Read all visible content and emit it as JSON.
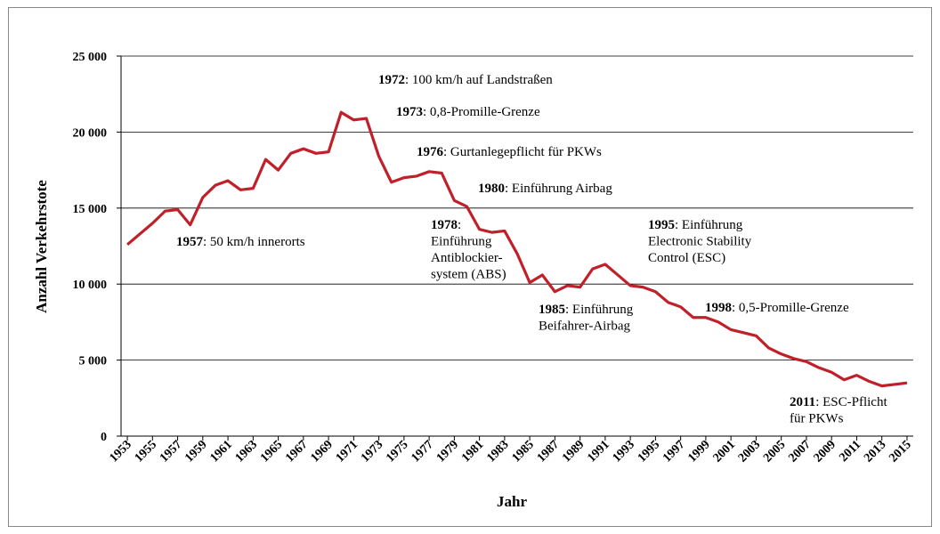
{
  "chart_data": {
    "type": "line",
    "x_label": "Jahr",
    "y_label": "Anzahl Verkehrstote",
    "x": [
      1953,
      1954,
      1955,
      1956,
      1957,
      1958,
      1959,
      1960,
      1961,
      1962,
      1963,
      1964,
      1965,
      1966,
      1967,
      1968,
      1969,
      1970,
      1971,
      1972,
      1973,
      1974,
      1975,
      1976,
      1977,
      1978,
      1979,
      1980,
      1981,
      1982,
      1983,
      1984,
      1985,
      1986,
      1987,
      1988,
      1989,
      1990,
      1991,
      1992,
      1993,
      1994,
      1995,
      1996,
      1997,
      1998,
      1999,
      2000,
      2001,
      2002,
      2003,
      2004,
      2005,
      2006,
      2007,
      2008,
      2009,
      2010,
      2011,
      2012,
      2013,
      2014,
      2015
    ],
    "series": [
      {
        "color": "#c0202a",
        "values": [
          12600,
          13300,
          14000,
          14800,
          14900,
          13900,
          15700,
          16500,
          16800,
          16200,
          16300,
          18200,
          17500,
          18600,
          18900,
          18600,
          18700,
          21300,
          20800,
          20900,
          18400,
          16700,
          17000,
          17100,
          17400,
          17300,
          15500,
          15100,
          13600,
          13400,
          13500,
          12000,
          10100,
          10600,
          9500,
          9900,
          9800,
          11000,
          11300,
          10600,
          9900,
          9800,
          9500,
          8800,
          8500,
          7800,
          7800,
          7500,
          7000,
          6800,
          6600,
          5800,
          5400,
          5100,
          4900,
          4500,
          4200,
          3700,
          4000,
          3600,
          3300,
          3400,
          3500
        ]
      }
    ],
    "xlim": [
      1952.5,
      2015.5
    ],
    "xticks": [
      1953,
      1955,
      1957,
      1959,
      1961,
      1963,
      1965,
      1967,
      1969,
      1971,
      1973,
      1975,
      1977,
      1979,
      1981,
      1983,
      1985,
      1987,
      1989,
      1991,
      1993,
      1995,
      1997,
      1999,
      2001,
      2003,
      2005,
      2007,
      2009,
      2011,
      2013,
      2015
    ],
    "ylim": [
      0,
      25000
    ],
    "yticks": [
      0,
      {
        "value": 5000,
        "label": "5 000"
      },
      {
        "value": 10000,
        "label": "10 000"
      },
      {
        "value": 15000,
        "label": "15 000"
      },
      {
        "value": 20000,
        "label": "20 000"
      },
      {
        "value": 25000,
        "label": "25 000"
      }
    ],
    "grid": true,
    "annotations": [
      {
        "bold": "1972",
        "lines": [
          ": 100 km/h auf Landstraßen"
        ]
      },
      {
        "bold": "1973",
        "lines": [
          ": 0,8-Promille-Grenze"
        ]
      },
      {
        "bold": "1976",
        "lines": [
          ": Gurtanlegepflicht für PKWs"
        ]
      },
      {
        "bold": "1980",
        "lines": [
          ": Einführung Airbag"
        ]
      },
      {
        "bold": "1957",
        "lines": [
          ": 50 km/h innerorts"
        ]
      },
      {
        "bold": "1978",
        "lines": [
          ":",
          "Einführung",
          "Antiblockier-",
          "system (ABS)"
        ]
      },
      {
        "bold": "1995",
        "lines": [
          ": Einführung",
          "Electronic Stability",
          "Control (ESC)"
        ]
      },
      {
        "bold": "1985",
        "lines": [
          ": Einführung",
          "Beifahrer-Airbag"
        ]
      },
      {
        "bold": "1998",
        "lines": [
          ": 0,5-Promille-Grenze"
        ]
      },
      {
        "bold": "2011",
        "lines": [
          ": ESC-Pflicht",
          "für PKWs"
        ]
      }
    ]
  }
}
